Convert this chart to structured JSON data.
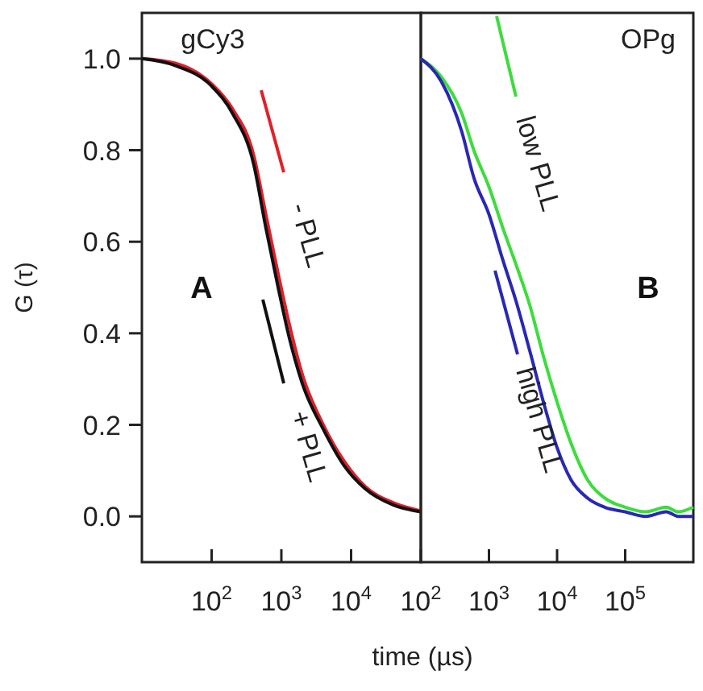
{
  "chart_data": [
    {
      "type": "line",
      "title": "gCy3",
      "xlabel": "time (µs)",
      "ylabel": "G (τ)",
      "log": "x",
      "xlim": [
        10,
        100000
      ],
      "ylim": [
        -0.1,
        1.1
      ],
      "xticks": [
        {
          "value": 100,
          "label": "10$^{2}$"
        },
        {
          "value": 1000,
          "label": "10$^{3}$"
        },
        {
          "value": 10000,
          "label": "10$^{4}$"
        }
      ],
      "yticks": [
        {
          "value": 0,
          "label": "0.0"
        },
        {
          "value": 0.2,
          "label": "0.2"
        },
        {
          "value": 0.4,
          "label": "0.4"
        },
        {
          "value": 0.6,
          "label": "0.6"
        },
        {
          "value": 0.8,
          "label": "0.8"
        },
        {
          "value": 1,
          "label": "1.0"
        }
      ],
      "grid": false,
      "annotations": [
        "A"
      ],
      "series": [
        {
          "name": "- PLL",
          "color": "#e0202a",
          "x": [
            10,
            30,
            100,
            200,
            400,
            600,
            900,
            1300,
            2000,
            4000,
            8000,
            16000,
            40000,
            100000
          ],
          "values": [
            1.0,
            0.99,
            0.945,
            0.89,
            0.79,
            0.66,
            0.53,
            0.42,
            0.31,
            0.2,
            0.12,
            0.065,
            0.03,
            0.012
          ]
        },
        {
          "name": "+ PLL",
          "color": "#111111",
          "x": [
            10,
            30,
            100,
            200,
            400,
            600,
            900,
            1300,
            2000,
            4000,
            8000,
            16000,
            40000,
            100000
          ],
          "values": [
            1.0,
            0.985,
            0.94,
            0.88,
            0.77,
            0.63,
            0.5,
            0.39,
            0.29,
            0.19,
            0.11,
            0.06,
            0.025,
            0.01
          ]
        }
      ]
    },
    {
      "type": "line",
      "title": "OPg",
      "log": "x",
      "xlim": [
        100,
        1000000
      ],
      "ylim": [
        -0.1,
        1.1
      ],
      "tick_labels": "x",
      "xticks": [
        {
          "value": 100,
          "label": "10$^{2}$"
        },
        {
          "value": 1000,
          "label": "10$^{3}$"
        },
        {
          "value": 10000,
          "label": "10$^{4}$"
        },
        {
          "value": 100000,
          "label": "10$^{5}$"
        }
      ],
      "grid": false,
      "annotations": [
        "B"
      ],
      "series": [
        {
          "name": "low PLL",
          "color": "#3ddc3d",
          "x": [
            100,
            200,
            400,
            600,
            1000,
            1600,
            2500,
            4000,
            6300,
            10000,
            16000,
            28000,
            50000,
            100000,
            200000,
            400000,
            600000,
            1000000
          ],
          "values": [
            1.0,
            0.96,
            0.88,
            0.8,
            0.72,
            0.63,
            0.55,
            0.46,
            0.35,
            0.25,
            0.16,
            0.08,
            0.04,
            0.02,
            0.01,
            0.02,
            0.01,
            0.02
          ]
        },
        {
          "name": "high PLL",
          "color": "#2828b4",
          "x": [
            100,
            200,
            400,
            600,
            1000,
            1600,
            2500,
            4000,
            6300,
            10000,
            16000,
            28000,
            50000,
            100000,
            200000,
            400000,
            600000,
            1000000
          ],
          "values": [
            1.0,
            0.95,
            0.84,
            0.74,
            0.66,
            0.56,
            0.47,
            0.36,
            0.25,
            0.15,
            0.08,
            0.04,
            0.02,
            0.01,
            0.0,
            0.01,
            0.0,
            0.0
          ]
        }
      ]
    }
  ]
}
